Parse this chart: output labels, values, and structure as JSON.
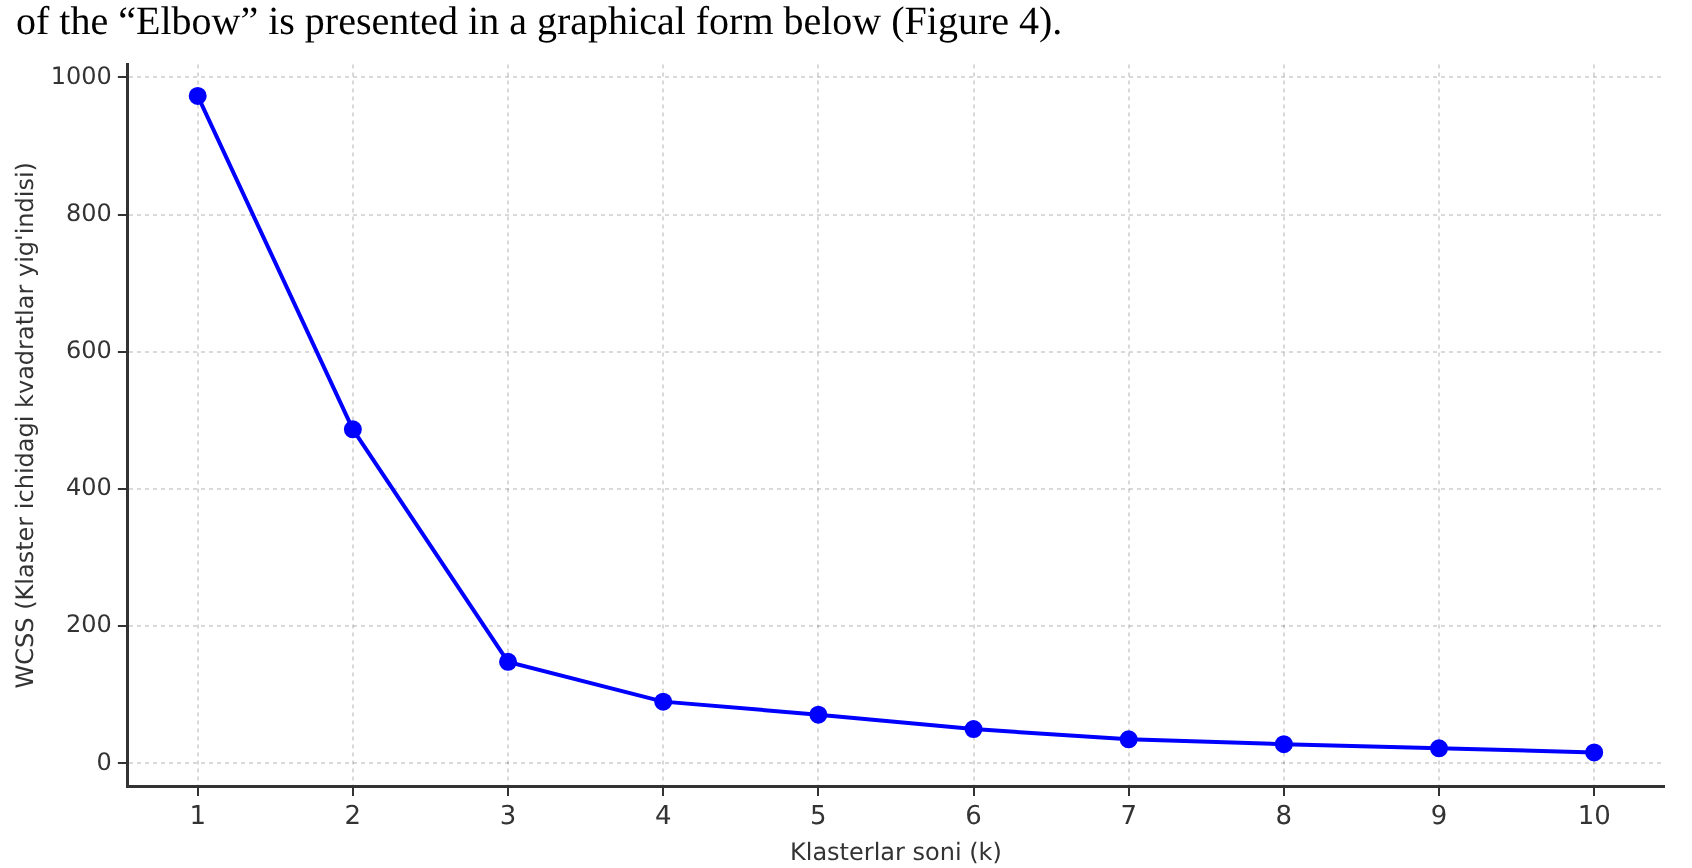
{
  "chart_data": {
    "type": "line",
    "xlabel": "Klasterlar soni (k)",
    "ylabel": "WCSS (Klaster ichidagi kvadratlar yig'indisi)",
    "annotations": [
      "of the “Elbow” is presented in a graphical form below (Figure 4)."
    ],
    "x": [
      1,
      2,
      3,
      4,
      5,
      6,
      7,
      8,
      9,
      10
    ],
    "series": [
      {
        "color": "#0000ff",
        "values": [
          973,
          487,
          148,
          90,
          71,
          50,
          35,
          28,
          22,
          16
        ]
      }
    ],
    "xlim": [
      0.55,
      10.45
    ],
    "xticks": [
      1,
      2,
      3,
      4,
      5,
      6,
      7,
      8,
      9,
      10
    ],
    "ylim": [
      -33,
      1019
    ],
    "yticks": [
      0,
      200,
      400,
      600,
      800,
      1000
    ],
    "grid": true,
    "marker": "circle",
    "line_style": "solid",
    "legend": false
  }
}
